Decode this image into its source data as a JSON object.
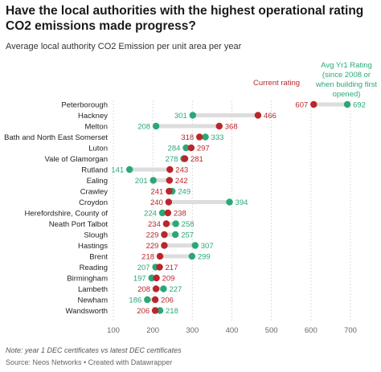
{
  "title": "Have the local authorities with the highest operational rating CO2 emissions made progress?",
  "subtitle": "Average local authority CO2 Emission per unit area per year",
  "footnote": "Note: year 1 DEC certificates vs latest DEC certificates",
  "source": "Source: Neos Networks • Created with Datawrapper",
  "colors": {
    "current": "#b9262b",
    "yr1": "#2aa876",
    "connector": "#dddddd",
    "grid": "#dcdcdc"
  },
  "chart_data": {
    "type": "dot",
    "title": "Have the local authorities with the highest operational rating CO2 emissions made progress?",
    "subtitle": "Average local authority CO2 Emission per unit area per year",
    "xlim": [
      100,
      700
    ],
    "xticks": [
      100,
      200,
      300,
      400,
      500,
      600,
      700
    ],
    "grid": true,
    "categories": [
      "Peterborough",
      "Hackney",
      "Melton",
      "Bath and North East Somerset",
      "Luton",
      "Vale of Glamorgan",
      "Rutland",
      "Ealing",
      "Crawley",
      "Croydon",
      "Herefordshire, County of",
      "Neath Port Talbot",
      "Slough",
      "Hastings",
      "Brent",
      "Reading",
      "Birmingham",
      "Lambeth",
      "Newham",
      "Wandsworth"
    ],
    "series": [
      {
        "name": "Current rating",
        "values": [
          607,
          466,
          368,
          318,
          297,
          281,
          243,
          242,
          241,
          240,
          238,
          234,
          229,
          229,
          218,
          217,
          209,
          208,
          206,
          206
        ]
      },
      {
        "name": "Avg Yr1 Rating (since 2008 or when building first opened)",
        "values": [
          692,
          301,
          208,
          333,
          284,
          278,
          141,
          201,
          249,
          394,
          224,
          258,
          257,
          307,
          299,
          207,
          197,
          227,
          186,
          218
        ]
      }
    ],
    "legend": [
      {
        "lines": [
          "Current rating"
        ]
      },
      {
        "lines": [
          "Avg Yr1 Rating",
          "(since 2008 or",
          "when building first",
          "opened)"
        ]
      }
    ]
  }
}
